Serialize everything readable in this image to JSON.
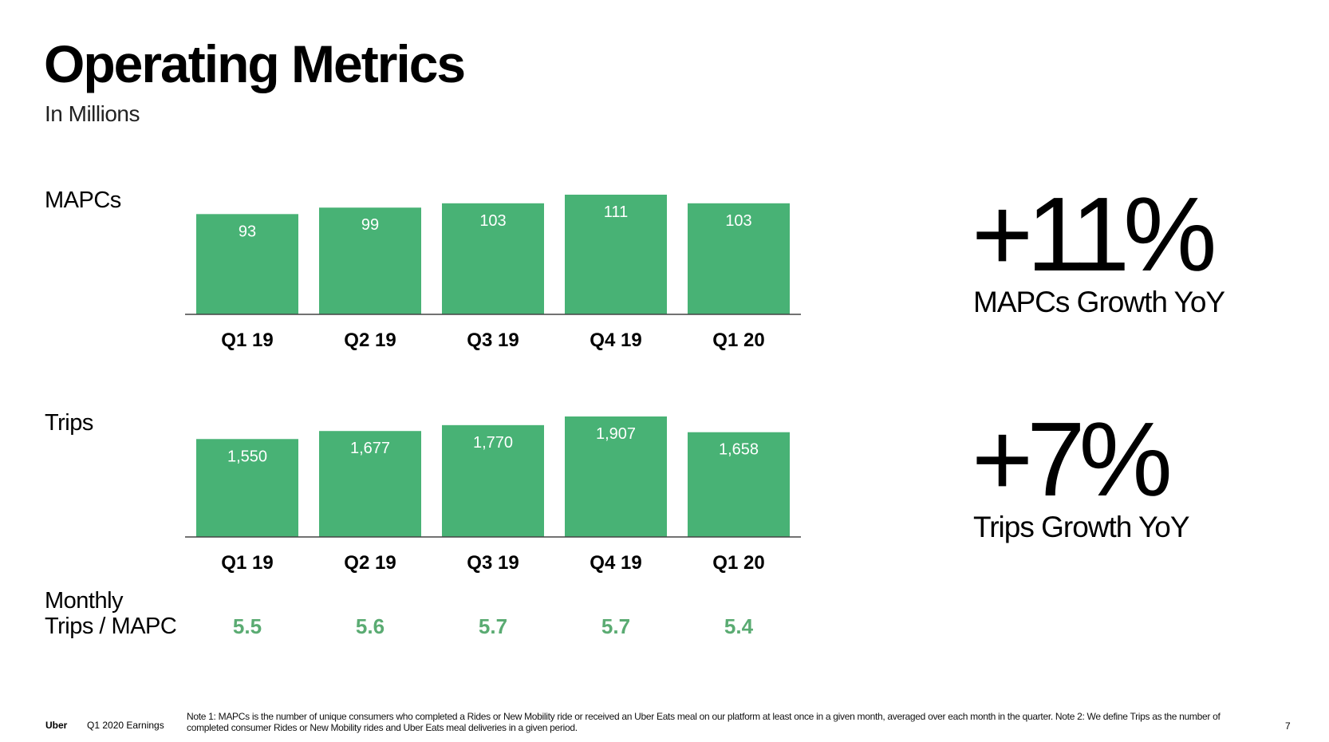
{
  "header": {
    "title": "Operating Metrics",
    "subtitle": "In Millions"
  },
  "chart_data": [
    {
      "type": "bar",
      "series_label": "MAPCs",
      "categories": [
        "Q1 19",
        "Q2 19",
        "Q3 19",
        "Q4 19",
        "Q1 20"
      ],
      "values": [
        93,
        99,
        103,
        111,
        103
      ],
      "value_labels": [
        "93",
        "99",
        "103",
        "111",
        "103"
      ],
      "bar_color": "#48b275",
      "grid": false
    },
    {
      "type": "bar",
      "series_label": "Trips",
      "categories": [
        "Q1 19",
        "Q2 19",
        "Q3 19",
        "Q4 19",
        "Q1 20"
      ],
      "values": [
        1550,
        1677,
        1770,
        1907,
        1658
      ],
      "value_labels": [
        "1,550",
        "1,677",
        "1,770",
        "1,907",
        "1,658"
      ],
      "bar_color": "#48b275",
      "grid": false
    }
  ],
  "ratio_row": {
    "label_line1": "Monthly",
    "label_line2": "Trips / MAPC",
    "values": [
      "5.5",
      "5.6",
      "5.7",
      "5.7",
      "5.4"
    ],
    "color": "#5aab72"
  },
  "kpis": [
    {
      "value": "+11%",
      "label": "MAPCs Growth YoY"
    },
    {
      "value": "+7%",
      "label": "Trips Growth YoY"
    }
  ],
  "footer": {
    "brand": "Uber",
    "report": "Q1 2020 Earnings",
    "note": "Note 1: MAPCs is the number of unique consumers who completed a Rides or New Mobility ride or received an Uber Eats meal on our platform at least once in a given month, averaged over each month in the quarter. Note 2: We define Trips as the number of completed consumer Rides or New Mobility rides and Uber Eats meal deliveries in a given period.",
    "page_number": "7"
  }
}
